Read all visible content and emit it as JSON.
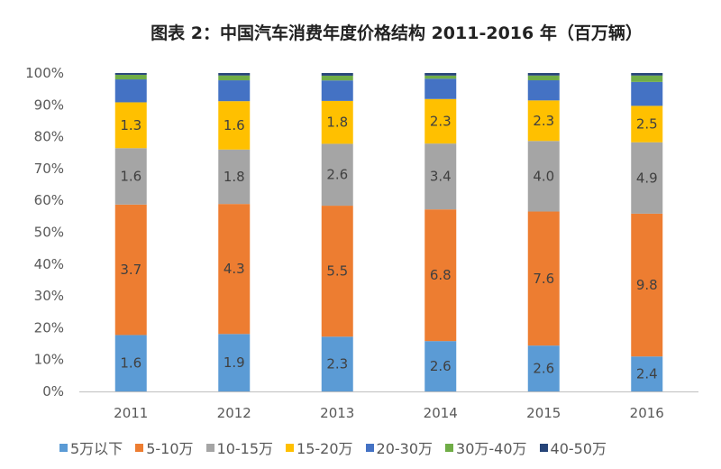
{
  "chart_data": {
    "type": "bar",
    "stacked": "percent",
    "title": "图表 2：中国汽车消费年度价格结构 2011-2016 年（百万辆）",
    "xlabel": "",
    "ylabel": "",
    "ylim": [
      0,
      100
    ],
    "yticks": [
      "0%",
      "10%",
      "20%",
      "30%",
      "40%",
      "50%",
      "60%",
      "70%",
      "80%",
      "90%",
      "100%"
    ],
    "categories": [
      "2011",
      "2012",
      "2013",
      "2014",
      "2015",
      "2016"
    ],
    "legend_position": "bottom",
    "grid": false,
    "series": [
      {
        "name": "5万以下",
        "color": "#5B9BD5",
        "labeled": true,
        "values": [
          1.6,
          1.9,
          2.3,
          2.6,
          2.6,
          2.4
        ]
      },
      {
        "name": "5-10万",
        "color": "#ED7D31",
        "labeled": true,
        "values": [
          3.7,
          4.3,
          5.5,
          6.8,
          7.6,
          9.8
        ]
      },
      {
        "name": "10-15万",
        "color": "#A5A5A5",
        "labeled": true,
        "values": [
          1.6,
          1.8,
          2.6,
          3.4,
          4.0,
          4.9
        ]
      },
      {
        "name": "15-20万",
        "color": "#FFC000",
        "labeled": true,
        "values": [
          1.3,
          1.6,
          1.8,
          2.3,
          2.3,
          2.5
        ]
      },
      {
        "name": "20-30万",
        "color": "#4472C4",
        "labeled": false,
        "values": [
          0.65,
          0.69,
          0.86,
          1.05,
          1.14,
          1.64
        ]
      },
      {
        "name": "30万-40万",
        "color": "#70AD47",
        "labeled": false,
        "values": [
          0.13,
          0.16,
          0.2,
          0.16,
          0.27,
          0.44
        ]
      },
      {
        "name": "40-50万",
        "color": "#264478",
        "labeled": false,
        "values": [
          0.05,
          0.08,
          0.11,
          0.13,
          0.14,
          0.17
        ]
      }
    ]
  }
}
